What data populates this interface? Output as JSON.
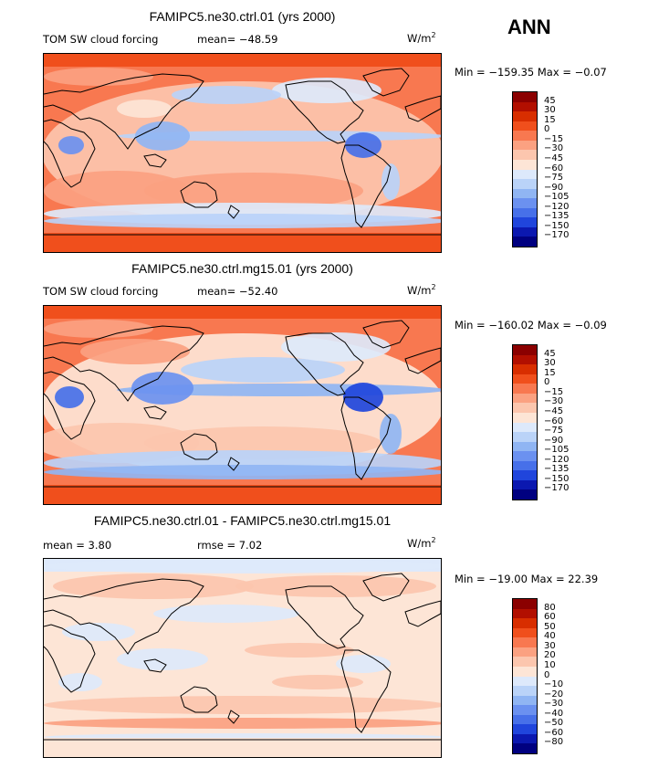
{
  "season": "ANN",
  "panels": [
    {
      "title": "FAMIPC5.ne30.ctrl.01 (yrs 2000)",
      "variable": "TOM SW cloud forcing",
      "stat1": "mean= −48.59",
      "stat2": "",
      "units_base": "W/m",
      "units_exp": "2",
      "minmax": "Min = −159.35 Max =  −0.07",
      "levels": [
        "45",
        "30",
        "15",
        "0",
        "−15",
        "−30",
        "−45",
        "−60",
        "−75",
        "−90",
        "−105",
        "−120",
        "−135",
        "−150",
        "−170"
      ],
      "colors": [
        "#8b0000",
        "#b20f00",
        "#d82e00",
        "#f04f1c",
        "#f87850",
        "#fba181",
        "#fcc6ae",
        "#fde5d6",
        "#dde9fb",
        "#bad3f8",
        "#90b5f3",
        "#6b91f0",
        "#4770e9",
        "#2045dc",
        "#0b18b0",
        "#000080"
      ]
    },
    {
      "title": "FAMIPC5.ne30.ctrl.mg15.01 (yrs 2000)",
      "variable": "TOM SW cloud forcing",
      "stat1": "mean= −52.40",
      "stat2": "",
      "units_base": "W/m",
      "units_exp": "2",
      "minmax": "Min = −160.02 Max =  −0.09",
      "levels": [
        "45",
        "30",
        "15",
        "0",
        "−15",
        "−30",
        "−45",
        "−60",
        "−75",
        "−90",
        "−105",
        "−120",
        "−135",
        "−150",
        "−170"
      ],
      "colors": [
        "#8b0000",
        "#b20f00",
        "#d82e00",
        "#f04f1c",
        "#f87850",
        "#fba181",
        "#fcc6ae",
        "#fde5d6",
        "#dde9fb",
        "#bad3f8",
        "#90b5f3",
        "#6b91f0",
        "#4770e9",
        "#2045dc",
        "#0b18b0",
        "#000080"
      ]
    },
    {
      "title": "FAMIPC5.ne30.ctrl.01 - FAMIPC5.ne30.ctrl.mg15.01",
      "variable": "",
      "stat1": "mean =   3.80",
      "stat2": "rmse =   7.02",
      "units_base": "W/m",
      "units_exp": "2",
      "minmax": "Min = −19.00 Max =  22.39",
      "levels": [
        "80",
        "60",
        "50",
        "40",
        "30",
        "20",
        "10",
        "0",
        "−10",
        "−20",
        "−30",
        "−40",
        "−50",
        "−60",
        "−80"
      ],
      "colors": [
        "#8b0000",
        "#b20f00",
        "#d82e00",
        "#f04f1c",
        "#f87850",
        "#fba181",
        "#fcc6ae",
        "#fde5d6",
        "#dde9fb",
        "#bad3f8",
        "#90b5f3",
        "#6b91f0",
        "#4770e9",
        "#2045dc",
        "#0b18b0",
        "#000080"
      ]
    }
  ],
  "chart_data": {
    "type": "heatmap",
    "title": "ANN",
    "field": "TOM SW cloud forcing (W/m2)",
    "projection": "cylindrical equidistant, global",
    "panels": [
      {
        "case": "FAMIPC5.ne30.ctrl.01 (yrs 2000)",
        "mean": -48.59,
        "min": -159.35,
        "max": -0.07,
        "contour_levels": [
          -170,
          -150,
          -135,
          -120,
          -105,
          -90,
          -75,
          -60,
          -45,
          -30,
          -15,
          0,
          15,
          30,
          45
        ]
      },
      {
        "case": "FAMIPC5.ne30.ctrl.mg15.01 (yrs 2000)",
        "mean": -52.4,
        "min": -160.02,
        "max": -0.09,
        "contour_levels": [
          -170,
          -150,
          -135,
          -120,
          -105,
          -90,
          -75,
          -60,
          -45,
          -30,
          -15,
          0,
          15,
          30,
          45
        ]
      },
      {
        "case": "FAMIPC5.ne30.ctrl.01 - FAMIPC5.ne30.ctrl.mg15.01",
        "mean": 3.8,
        "rmse": 7.02,
        "min": -19.0,
        "max": 22.39,
        "contour_levels": [
          -80,
          -60,
          -50,
          -40,
          -30,
          -20,
          -10,
          0,
          10,
          20,
          30,
          40,
          50,
          60,
          80
        ]
      }
    ]
  }
}
